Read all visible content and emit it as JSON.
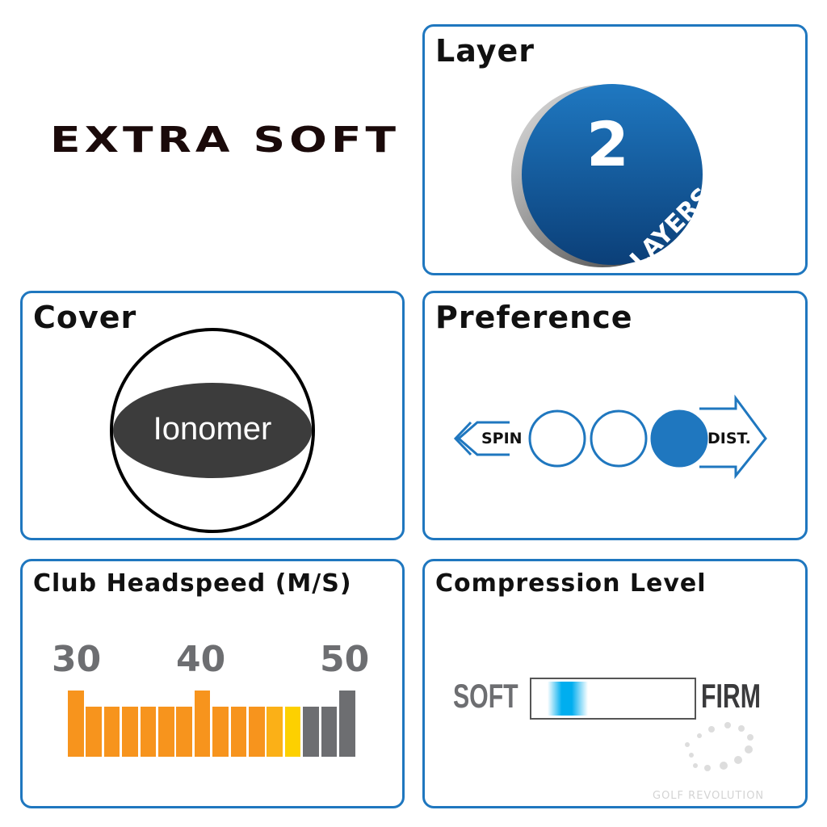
{
  "headline": "EXTRA SOFT",
  "layer": {
    "title": "Layer",
    "count": "2",
    "unit": "LAYERS",
    "color": "#0d4f91"
  },
  "cover": {
    "title": "Cover",
    "material": "Ionomer"
  },
  "preference": {
    "title": "Preference",
    "left_label": "SPIN",
    "right_label": "DIST.",
    "levels": 3,
    "selected_level": 3,
    "color": "#1f77bf"
  },
  "headspeed": {
    "title": "Club Headspeed (M/S)",
    "tick_labels": [
      "30",
      "40",
      "50"
    ],
    "bar_colors": [
      "#f7941d",
      "#f7941d",
      "#f7941d",
      "#f7941d",
      "#f7941d",
      "#f7941d",
      "#f7941d",
      "#f7941d",
      "#f7941d",
      "#f7941d",
      "#f7941d",
      "#fbb017",
      "#fdd000",
      "#6d6e71",
      "#6d6e71",
      "#6d6e71"
    ],
    "bar_tall": [
      true,
      false,
      false,
      false,
      false,
      false,
      false,
      true,
      false,
      false,
      false,
      false,
      false,
      false,
      false,
      true
    ]
  },
  "compression": {
    "title": "Compression Level",
    "left_label": "SOFT",
    "right_label": "FIRM",
    "level_percent": 15,
    "color": "#00aeef"
  },
  "watermark": "GOLF REVOLUTION"
}
